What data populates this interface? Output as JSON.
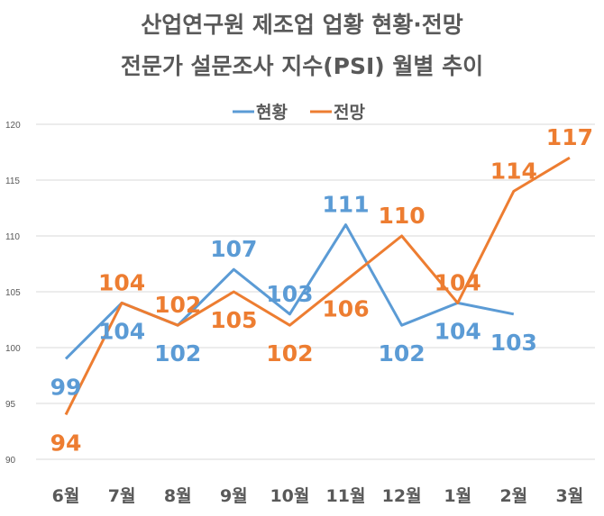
{
  "chart_data": {
    "type": "line",
    "title_line1": "산업연구원 제조업 업황 현황·전망",
    "title_line2": "전문가 설문조사 지수(PSI) 월별 추이",
    "categories": [
      "6월",
      "7월",
      "8월",
      "9월",
      "10월",
      "11월",
      "12월",
      "1월",
      "2월",
      "3월"
    ],
    "ylim": [
      90,
      120
    ],
    "yticks": [
      90,
      95,
      100,
      105,
      110,
      115,
      120
    ],
    "grid": true,
    "legend_position": "top",
    "series": [
      {
        "name": "현황",
        "color": "#5B9BD5",
        "values": [
          99,
          104,
          102,
          107,
          103,
          111,
          102,
          104,
          103,
          null
        ]
      },
      {
        "name": "전망",
        "color": "#ED7D31",
        "values": [
          94,
          104,
          102,
          105,
          102,
          106,
          110,
          104,
          114,
          117
        ]
      }
    ]
  }
}
